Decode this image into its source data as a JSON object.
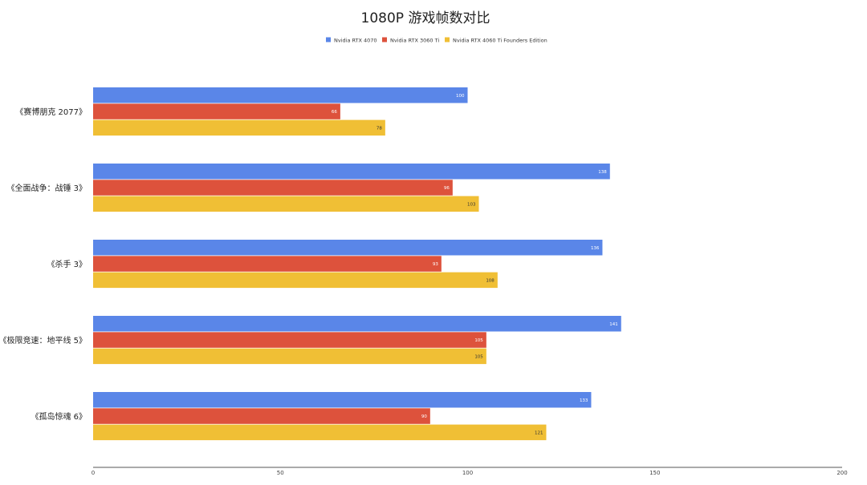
{
  "chart_data": {
    "type": "bar",
    "orientation": "horizontal",
    "title": "1080P 游戏帧数对比",
    "categories": [
      "《赛博朋克 2077》",
      "《全面战争：战锤 3》",
      "《杀手 3》",
      "《极限竞速：地平线 5》",
      "《孤岛惊魂 6》"
    ],
    "series": [
      {
        "name": "Nvidia RTX 4070",
        "color": "#5a86e8",
        "label_color": "#ffffff",
        "values": [
          100,
          138,
          136,
          141,
          133
        ]
      },
      {
        "name": "Nvidia RTX 3060 Ti",
        "color": "#dd523c",
        "label_color": "#ffffff",
        "values": [
          66,
          96,
          93,
          105,
          90
        ]
      },
      {
        "name": "Nvidia RTX 4060 Ti Founders Edition",
        "color": "#f0bf35",
        "label_color": "#333333",
        "values": [
          78,
          103,
          108,
          105,
          121
        ]
      }
    ],
    "xlim": [
      0,
      200
    ],
    "x_ticks": [
      "0",
      "50",
      "100",
      "150",
      "200"
    ],
    "xlabel": "",
    "ylabel": "",
    "legend": "top-center",
    "grid": false,
    "data_labels": true
  }
}
